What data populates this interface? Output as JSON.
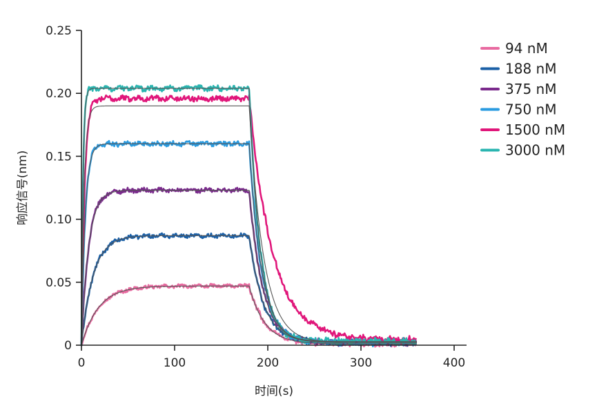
{
  "chart_data": {
    "type": "line",
    "title": "",
    "xlabel": "时间(s)",
    "ylabel": "响应信号(nm)",
    "xlim": [
      0,
      400
    ],
    "ylim": [
      0,
      0.25
    ],
    "xticks": [
      0,
      100,
      200,
      300,
      400
    ],
    "xtick_labels": [
      "0",
      "100",
      "200",
      "300",
      "400"
    ],
    "yticks": [
      0,
      0.05,
      0.1,
      0.15,
      0.2,
      0.25
    ],
    "ytick_labels": [
      "0",
      "0.05",
      "0.10",
      "0.15",
      "0.20",
      "0.25"
    ],
    "grid": false,
    "legend_position": "top-right",
    "association_end": 180,
    "x_end": 360,
    "series": [
      {
        "name": "94 nM",
        "color": "#e86aa0",
        "plateau": 0.047,
        "k_on": 0.055,
        "k_off": 0.06,
        "residual": 0.001
      },
      {
        "name": "188 nM",
        "color": "#1a5fa6",
        "plateau": 0.087,
        "k_on": 0.08,
        "k_off": 0.065,
        "residual": 0.002
      },
      {
        "name": "375 nM",
        "color": "#7a2a8c",
        "plateau": 0.123,
        "k_on": 0.13,
        "k_off": 0.07,
        "residual": 0.002
      },
      {
        "name": "750 nM",
        "color": "#2a9be0",
        "plateau": 0.16,
        "k_on": 0.25,
        "k_off": 0.075,
        "residual": 0.002
      },
      {
        "name": "1500 nM",
        "color": "#e0167a",
        "plateau": 0.196,
        "k_on": 0.3,
        "k_off": 0.04,
        "residual": 0.004
      },
      {
        "name": "3000 nM",
        "color": "#2ab5b0",
        "plateau": 0.204,
        "k_on": 0.6,
        "k_off": 0.085,
        "residual": 0.003
      }
    ]
  }
}
